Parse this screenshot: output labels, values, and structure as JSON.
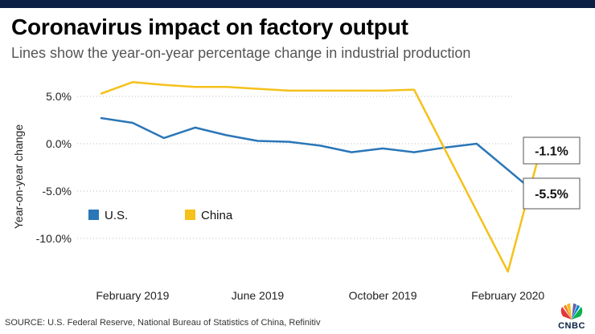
{
  "header": {
    "title": "Coronavirus impact on factory output",
    "subtitle": "Lines show the year-on-year percentage change in industrial production"
  },
  "footer": {
    "source": "SOURCE: U.S. Federal Reserve, National Bureau of Statistics of China, Refinitiv",
    "logo_text": "CNBC"
  },
  "colors": {
    "us": "#2a76b8",
    "china": "#f5c11a",
    "brand_bar": "#0b1f44"
  },
  "chart_data": {
    "type": "line",
    "title": "Coronavirus impact on factory output",
    "subtitle": "Lines show the year-on-year percentage change in industrial production",
    "xlabel": "",
    "ylabel": "Year-on-year change",
    "ylim": [
      -14,
      7
    ],
    "grid": true,
    "yticks": [
      {
        "value": 5,
        "label": "5.0%"
      },
      {
        "value": 0,
        "label": "0.0%"
      },
      {
        "value": -5,
        "label": "-5.0%"
      },
      {
        "value": -10,
        "label": "-10.0%"
      }
    ],
    "x": [
      "Jan 2019",
      "Feb 2019",
      "Mar 2019",
      "Apr 2019",
      "May 2019",
      "Jun 2019",
      "Jul 2019",
      "Aug 2019",
      "Sep 2019",
      "Oct 2019",
      "Nov 2019",
      "Dec 2019",
      "Jan 2020",
      "Feb 2020",
      "Mar 2020"
    ],
    "xticks": [
      {
        "index": 1,
        "label": "February 2019"
      },
      {
        "index": 5,
        "label": "June 2019"
      },
      {
        "index": 9,
        "label": "October 2019"
      },
      {
        "index": 13,
        "label": "February 2020"
      }
    ],
    "series": [
      {
        "name": "U.S.",
        "values": [
          2.7,
          2.2,
          0.6,
          1.7,
          0.9,
          0.3,
          0.2,
          -0.2,
          -0.9,
          -0.5,
          -0.9,
          -0.4,
          0.0,
          null,
          -5.5
        ],
        "end_label": "-5.5%"
      },
      {
        "name": "China",
        "values": [
          5.3,
          6.5,
          6.2,
          6.0,
          6.0,
          5.8,
          5.6,
          5.6,
          5.6,
          5.6,
          5.7,
          null,
          null,
          -13.5,
          -1.1
        ],
        "end_label": "-1.1%"
      }
    ],
    "legend": {
      "position": "bottom-left",
      "entries": [
        "U.S.",
        "China"
      ]
    }
  }
}
